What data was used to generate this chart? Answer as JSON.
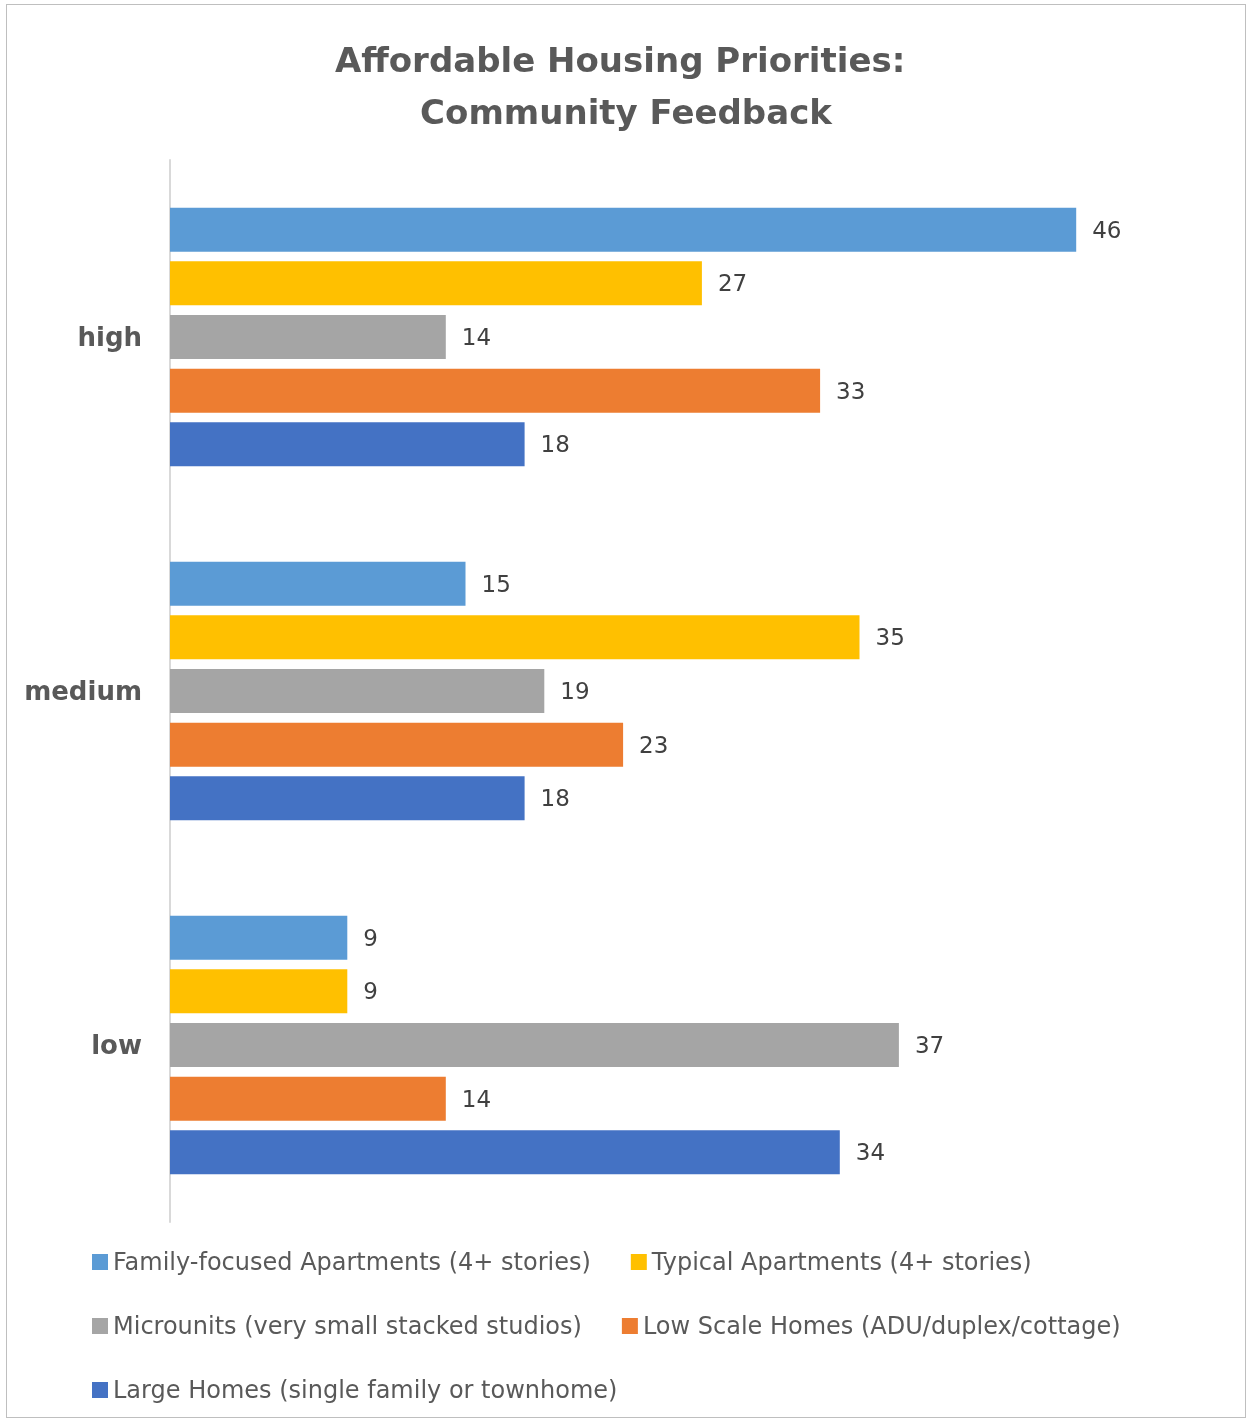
{
  "chart_data": {
    "type": "bar",
    "orientation": "horizontal",
    "title": "Affordable Housing Priorities: Community Feedback",
    "categories": [
      "high",
      "medium",
      "low"
    ],
    "series": [
      {
        "name": "Family-focused Apartments (4+ stories)",
        "color": "#5b9bd5",
        "values": [
          46,
          15,
          9
        ]
      },
      {
        "name": "Typical Apartments (4+ stories)",
        "color": "#ffc000",
        "values": [
          27,
          35,
          9
        ]
      },
      {
        "name": "Microunits (very small stacked studios)",
        "color": "#a5a5a5",
        "values": [
          14,
          19,
          37
        ]
      },
      {
        "name": "Low Scale Homes (ADU/duplex/cottage)",
        "color": "#ed7d31",
        "values": [
          33,
          23,
          14
        ]
      },
      {
        "name": "Large Homes (single family or townhome)",
        "color": "#4472c4",
        "values": [
          18,
          18,
          34
        ]
      }
    ],
    "data_labels": true,
    "grid": false,
    "legend": "bottom"
  }
}
